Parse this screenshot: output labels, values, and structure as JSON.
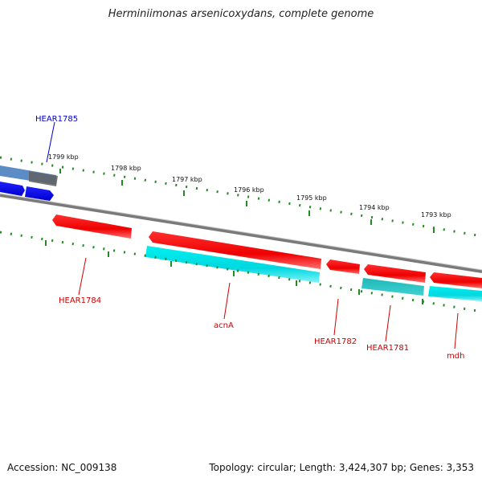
{
  "title": "Herminiimonas arsenicoxydans, complete genome",
  "footer": {
    "accession": "Accession: NC_009138",
    "info": "Topology: circular; Length: 3,424,307 bp; Genes: 3,353"
  },
  "scale_labels": [
    "1799 kbp",
    "1798 kbp",
    "1797 kbp",
    "1796 kbp",
    "1795 kbp",
    "1794 kbp",
    "1793 kbp"
  ],
  "genes": [
    {
      "name": "HEAR1785",
      "color": "#0000cc"
    },
    {
      "name": "HEAR1784",
      "color": "#cc0000"
    },
    {
      "name": "acnA",
      "color": "#cc0000"
    },
    {
      "name": "HEAR1782",
      "color": "#cc0000"
    },
    {
      "name": "HEAR1781",
      "color": "#cc0000"
    },
    {
      "name": "mdh",
      "color": "#cc0000"
    }
  ],
  "colors": {
    "forward_gene": "#ff0000",
    "reverse_gene": "#00e5ee",
    "other_gene": "#0000ff",
    "tick": "#228b22",
    "backbone": "#808080"
  }
}
